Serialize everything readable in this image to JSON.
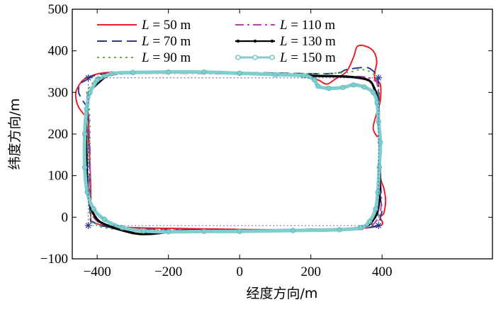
{
  "chart_data": {
    "type": "line",
    "title": "",
    "xlabel": "经度方向/m",
    "ylabel": "纬度方向/m",
    "xlim": [
      -470,
      710
    ],
    "ylim": [
      -100,
      500
    ],
    "xticks": [
      -400,
      -200,
      0,
      200,
      400
    ],
    "yticks": [
      -100,
      0,
      100,
      200,
      300,
      400,
      500
    ],
    "xtick_labels": [
      "−400",
      "−200",
      "0",
      "200",
      "400"
    ],
    "ytick_labels": [
      "−100",
      "0",
      "100",
      "200",
      "300",
      "400",
      "500"
    ],
    "grid": false,
    "legend_position": "top-left",
    "reference_waypoints": [
      [
        -425,
        335
      ],
      [
        390,
        335
      ],
      [
        390,
        -20
      ],
      [
        -425,
        -20
      ]
    ],
    "series": [
      {
        "name": "L = 50 m",
        "var": "L",
        "value_text": " = 50 m",
        "color": "#e8202a",
        "dash": "",
        "marker": "none",
        "points": [
          [
            -430,
            335
          ],
          [
            -370,
            348
          ],
          [
            -200,
            348
          ],
          [
            0,
            345
          ],
          [
            180,
            340
          ],
          [
            220,
            330
          ],
          [
            245,
            320
          ],
          [
            270,
            333
          ],
          [
            300,
            350
          ],
          [
            320,
            385
          ],
          [
            330,
            410
          ],
          [
            350,
            412
          ],
          [
            375,
            400
          ],
          [
            385,
            375
          ],
          [
            380,
            350
          ],
          [
            380,
            330
          ],
          [
            395,
            320
          ],
          [
            395,
            280
          ],
          [
            385,
            250
          ],
          [
            375,
            215
          ],
          [
            385,
            195
          ],
          [
            395,
            190
          ],
          [
            395,
            100
          ],
          [
            405,
            70
          ],
          [
            410,
            40
          ],
          [
            405,
            10
          ],
          [
            395,
            0
          ],
          [
            395,
            -20
          ],
          [
            300,
            -28
          ],
          [
            100,
            -30
          ],
          [
            -100,
            -28
          ],
          [
            -300,
            -25
          ],
          [
            -380,
            -20
          ],
          [
            -415,
            -10
          ],
          [
            -418,
            0
          ],
          [
            -418,
            60
          ],
          [
            -420,
            120
          ],
          [
            -425,
            200
          ],
          [
            -425,
            235
          ],
          [
            -440,
            250
          ],
          [
            -455,
            270
          ],
          [
            -460,
            300
          ],
          [
            -445,
            325
          ],
          [
            -430,
            335
          ]
        ]
      },
      {
        "name": "L = 70 m",
        "var": "L",
        "value_text": " = 70 m",
        "color": "#2a3a8f",
        "dash": "14,7",
        "marker": "none",
        "points": [
          [
            -430,
            330
          ],
          [
            -400,
            342
          ],
          [
            -300,
            348
          ],
          [
            0,
            348
          ],
          [
            250,
            345
          ],
          [
            300,
            355
          ],
          [
            350,
            360
          ],
          [
            370,
            355
          ],
          [
            385,
            340
          ],
          [
            390,
            320
          ],
          [
            392,
            250
          ],
          [
            393,
            120
          ],
          [
            395,
            50
          ],
          [
            400,
            20
          ],
          [
            395,
            0
          ],
          [
            385,
            -20
          ],
          [
            300,
            -28
          ],
          [
            0,
            -32
          ],
          [
            -300,
            -28
          ],
          [
            -380,
            -22
          ],
          [
            -410,
            -12
          ],
          [
            -420,
            5
          ],
          [
            -422,
            150
          ],
          [
            -425,
            250
          ],
          [
            -440,
            280
          ],
          [
            -452,
            300
          ],
          [
            -448,
            320
          ],
          [
            -430,
            330
          ]
        ]
      },
      {
        "name": "L = 90 m",
        "var": "L",
        "value_text": " = 90 m",
        "color": "#59b641",
        "dash": "3,5",
        "marker": "none",
        "points": [
          [
            -410,
            325
          ],
          [
            -370,
            345
          ],
          [
            -200,
            348
          ],
          [
            0,
            347
          ],
          [
            200,
            345
          ],
          [
            300,
            348
          ],
          [
            340,
            355
          ],
          [
            370,
            348
          ],
          [
            385,
            330
          ],
          [
            390,
            300
          ],
          [
            392,
            200
          ],
          [
            393,
            80
          ],
          [
            390,
            20
          ],
          [
            375,
            -15
          ],
          [
            300,
            -28
          ],
          [
            0,
            -30
          ],
          [
            -300,
            -30
          ],
          [
            -380,
            -25
          ],
          [
            -405,
            -15
          ],
          [
            -418,
            0
          ],
          [
            -420,
            150
          ],
          [
            -422,
            260
          ],
          [
            -430,
            295
          ],
          [
            -420,
            315
          ],
          [
            -410,
            325
          ]
        ]
      },
      {
        "name": "L = 110 m",
        "var": "L",
        "value_text": " = 110 m",
        "color": "#bd3fb0",
        "dash": "12,5,3,5",
        "marker": "none",
        "points": [
          [
            -410,
            320
          ],
          [
            -360,
            342
          ],
          [
            -200,
            346
          ],
          [
            0,
            344
          ],
          [
            250,
            338
          ],
          [
            340,
            338
          ],
          [
            375,
            330
          ],
          [
            388,
            310
          ],
          [
            392,
            200
          ],
          [
            395,
            100
          ],
          [
            398,
            40
          ],
          [
            390,
            0
          ],
          [
            360,
            -25
          ],
          [
            300,
            -30
          ],
          [
            0,
            -33
          ],
          [
            -200,
            -33
          ],
          [
            -320,
            -32
          ],
          [
            -375,
            -20
          ],
          [
            -410,
            0
          ],
          [
            -420,
            50
          ],
          [
            -420,
            150
          ],
          [
            -425,
            240
          ],
          [
            -428,
            290
          ],
          [
            -410,
            320
          ]
        ]
      },
      {
        "name": "L = 130 m",
        "var": "L",
        "value_text": " = 130 m",
        "color": "#000000",
        "dash": "",
        "marker": "dot",
        "points": [
          [
            -395,
            325
          ],
          [
            -350,
            345
          ],
          [
            -200,
            350
          ],
          [
            0,
            345
          ],
          [
            200,
            340
          ],
          [
            300,
            338
          ],
          [
            360,
            330
          ],
          [
            378,
            310
          ],
          [
            388,
            280
          ],
          [
            392,
            200
          ],
          [
            394,
            100
          ],
          [
            392,
            40
          ],
          [
            380,
            0
          ],
          [
            340,
            -25
          ],
          [
            200,
            -30
          ],
          [
            0,
            -32
          ],
          [
            -150,
            -32
          ],
          [
            -250,
            -40
          ],
          [
            -300,
            -38
          ],
          [
            -370,
            -20
          ],
          [
            -405,
            0
          ],
          [
            -425,
            50
          ],
          [
            -430,
            150
          ],
          [
            -430,
            250
          ],
          [
            -420,
            300
          ],
          [
            -395,
            325
          ]
        ]
      },
      {
        "name": "L = 150 m",
        "var": "L",
        "value_text": " = 150 m",
        "color": "#7ecece",
        "dash": "",
        "marker": "circle",
        "points": [
          [
            -400,
            330
          ],
          [
            -360,
            345
          ],
          [
            -300,
            348
          ],
          [
            -200,
            349
          ],
          [
            -100,
            349
          ],
          [
            0,
            346
          ],
          [
            100,
            343
          ],
          [
            180,
            340
          ],
          [
            210,
            330
          ],
          [
            220,
            315
          ],
          [
            250,
            310
          ],
          [
            290,
            312
          ],
          [
            320,
            318
          ],
          [
            350,
            313
          ],
          [
            375,
            300
          ],
          [
            386,
            275
          ],
          [
            390,
            230
          ],
          [
            395,
            180
          ],
          [
            392,
            120
          ],
          [
            388,
            60
          ],
          [
            382,
            20
          ],
          [
            365,
            -10
          ],
          [
            340,
            -25
          ],
          [
            280,
            -30
          ],
          [
            150,
            -32
          ],
          [
            0,
            -34
          ],
          [
            -100,
            -34
          ],
          [
            -200,
            -35
          ],
          [
            -270,
            -33
          ],
          [
            -330,
            -25
          ],
          [
            -380,
            -5
          ],
          [
            -410,
            20
          ],
          [
            -428,
            60
          ],
          [
            -435,
            120
          ],
          [
            -435,
            200
          ],
          [
            -430,
            260
          ],
          [
            -420,
            300
          ],
          [
            -400,
            330
          ]
        ]
      }
    ]
  }
}
